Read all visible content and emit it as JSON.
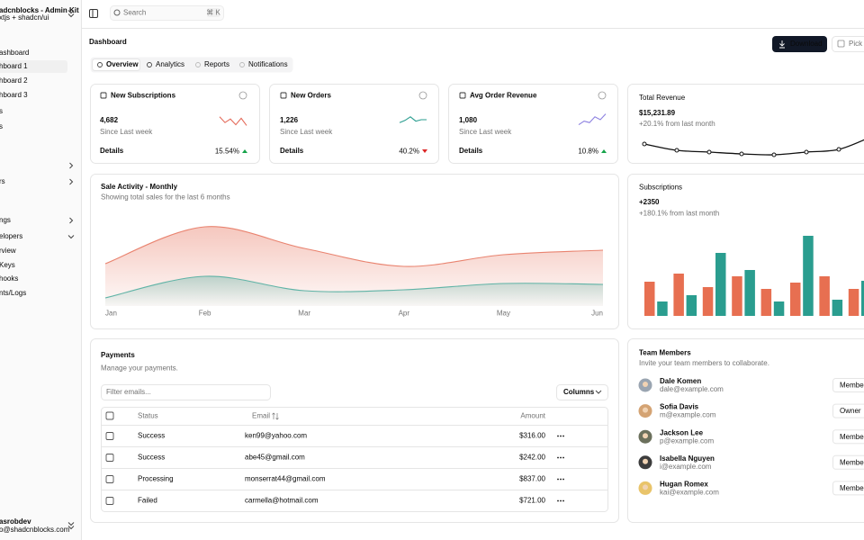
{
  "sidebar": {
    "brand": "adcnblocks - Admin Kit",
    "brand_sub": "xtjs + shadcn/ui",
    "items": [
      "ashboard",
      "hboard 1",
      "hboard 2",
      "hboard 3",
      "s",
      "s",
      "rs",
      "ngs",
      "elopers",
      "rview",
      "Keys",
      "hooks",
      "nts/Logs"
    ],
    "user": {
      "name": "asrobdev",
      "email": "o@shadcnblocks.com"
    }
  },
  "topbar": {
    "search": "Search",
    "shortcut": "⌘ K"
  },
  "header": {
    "title": "Dashboard",
    "tabs": [
      "Overview",
      "Analytics",
      "Reports",
      "Notifications"
    ],
    "download": "Download",
    "pick": "Pick a"
  },
  "stats": [
    {
      "title": "New Subscriptions",
      "value": "4,682",
      "caption": "Since Last week",
      "details": "Details",
      "change": "15.54%",
      "trend": "up",
      "color": "#e46a5a",
      "spark": [
        70,
        30,
        55,
        15,
        60,
        10
      ]
    },
    {
      "title": "New Orders",
      "value": "1,226",
      "caption": "Since Last week",
      "details": "Details",
      "change": "40.2%",
      "trend": "down",
      "color": "#2a9d8f",
      "spark": [
        30,
        45,
        70,
        40,
        50,
        50
      ]
    },
    {
      "title": "Avg Order Revenue",
      "value": "1,080",
      "caption": "Since Last week",
      "details": "Details",
      "change": "10.8%",
      "trend": "up",
      "color": "#8b7fe0",
      "spark": [
        15,
        40,
        30,
        70,
        50,
        90
      ]
    }
  ],
  "revenue": {
    "title": "Total Revenue",
    "value": "$15,231.89",
    "caption": "+20.1% from last month",
    "ylim": [
      0,
      100
    ],
    "values": [
      60,
      32,
      24,
      16,
      12,
      24,
      36,
      92
    ]
  },
  "sales": {
    "title": "Sale Activity - Monthly",
    "subtitle": "Showing total sales for the last 6 months",
    "categories": [
      "Jan",
      "Feb",
      "Mar",
      "Apr",
      "May",
      "Jun"
    ],
    "ylim": [
      0,
      100
    ],
    "series": [
      {
        "color": "#e9836f",
        "values": [
          47,
          88,
          64,
          44,
          57,
          62
        ]
      },
      {
        "color": "#5fb3a6",
        "values": [
          9,
          33,
          17,
          18,
          25,
          24
        ]
      }
    ]
  },
  "subscriptions": {
    "title": "Subscriptions",
    "value": "+2350",
    "caption": "+180.1% from last month",
    "ylim": [
      0,
      100
    ],
    "colors": [
      "#e76f51",
      "#2a9d8f"
    ],
    "values": [
      38,
      16,
      47,
      23,
      32,
      70,
      44,
      51,
      30,
      16,
      37,
      89,
      44,
      18,
      30,
      39
    ]
  },
  "payments": {
    "title": "Payments",
    "subtitle": "Manage your payments.",
    "filter": "Filter emails...",
    "columns_button": "Columns",
    "headers": [
      "Status",
      "Email",
      "Amount"
    ],
    "rows": [
      [
        "Success",
        "ken99@yahoo.com",
        "$316.00"
      ],
      [
        "Success",
        "abe45@gmail.com",
        "$242.00"
      ],
      [
        "Processing",
        "monserrat44@gmail.com",
        "$837.00"
      ],
      [
        "Failed",
        "carmella@hotmail.com",
        "$721.00"
      ]
    ]
  },
  "team": {
    "title": "Team Members",
    "subtitle": "Invite your team members to collaborate.",
    "members": [
      {
        "name": "Dale Komen",
        "email": "dale@example.com",
        "role": "Member"
      },
      {
        "name": "Sofia Davis",
        "email": "m@example.com",
        "role": "Owner"
      },
      {
        "name": "Jackson Lee",
        "email": "p@example.com",
        "role": "Member"
      },
      {
        "name": "Isabella Nguyen",
        "email": "i@example.com",
        "role": "Member"
      },
      {
        "name": "Hugan Romex",
        "email": "kai@example.com",
        "role": "Member"
      }
    ]
  }
}
